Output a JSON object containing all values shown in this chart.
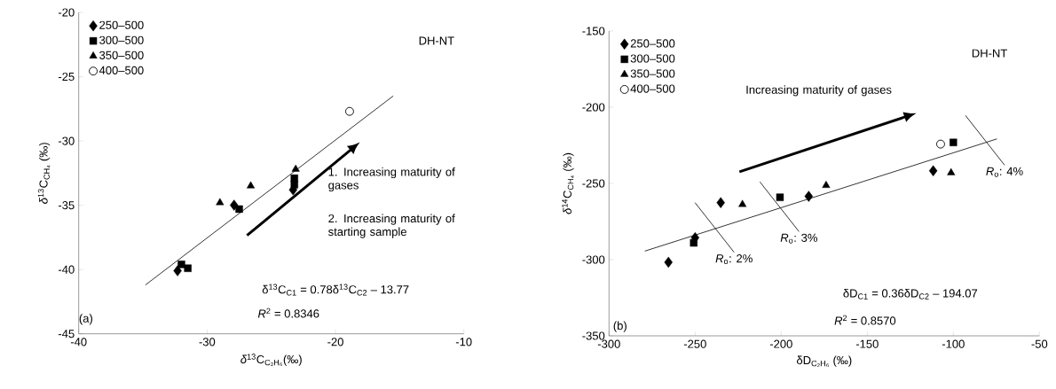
{
  "chart_data": [
    {
      "type": "scatter",
      "xlabel": "*δ*$^{13}$C$_{C₂H₆}$(‰)",
      "ylabel": "*δ*$^{13}$C$_{CH₄}$ (‰)",
      "xlim": [
        -40,
        -10
      ],
      "xticks": [
        -40,
        -30,
        -20,
        -10
      ],
      "ylim": [
        -45,
        -20
      ],
      "yticks": [
        -45,
        -40,
        -35,
        -30,
        -25,
        -20
      ],
      "legend": "top left",
      "grid": false,
      "series": [
        {
          "type": "line",
          "marker": "none",
          "color": "#000000",
          "x": [
            -34.8,
            -15.5
          ],
          "values": [
            -41.2,
            -26.5
          ]
        },
        {
          "name": "250–500",
          "marker": "diamond",
          "color": "#000000",
          "x": [
            -32.3,
            -27.9,
            -23.3
          ],
          "values": [
            -40.1,
            -35.0,
            -33.8
          ]
        },
        {
          "name": "300–500",
          "marker": "square",
          "color": "#000000",
          "x": [
            -32.0,
            -31.5,
            -27.5,
            -23.2,
            -23.2
          ],
          "values": [
            -39.6,
            -39.9,
            -35.3,
            -32.9,
            -33.4
          ]
        },
        {
          "name": "350–500",
          "marker": "triangle",
          "color": "#000000",
          "x": [
            -29.0,
            -26.6,
            -23.1
          ],
          "values": [
            -34.8,
            -33.5,
            -32.2
          ]
        },
        {
          "name": "400–500",
          "marker": "circle",
          "color": "#000000",
          "x": [
            -18.9
          ],
          "values": [
            -27.7
          ]
        }
      ],
      "annotations": [
        "DH-NT",
        "1. Increasing maturity of gases",
        "2. Increasing maturity of starting sample",
        "δ$^{13}$C$_{C1}$ = 0.78δ$^{13}$C$_{C2}$ – 13.77",
        "*R*$^{2}$ = 0.8346",
        "(a)"
      ]
    },
    {
      "type": "scatter",
      "xlabel": "δD$_{C₂H₆}$ (‰)",
      "ylabel": "*δ*$^{14}$C$_{CH₄}$ (‰)",
      "xlim": [
        -300,
        -50
      ],
      "xticks": [
        -300,
        -250,
        -200,
        -150,
        -100,
        -50
      ],
      "ylim": [
        -350,
        -150
      ],
      "yticks": [
        -350,
        -300,
        -250,
        -200,
        -150
      ],
      "legend": "top left",
      "grid": false,
      "series": [
        {
          "type": "line",
          "marker": "none",
          "color": "#000000",
          "x": [
            -279.2,
            -74.7
          ],
          "values": [
            -294.4,
            -220.8
          ]
        },
        {
          "name": "250–500",
          "marker": "diamond",
          "color": "#000000",
          "x": [
            -265.5,
            -250,
            -235.1,
            -184.0,
            -111.7
          ],
          "values": [
            -301.7,
            -285.6,
            -262.6,
            -258.5,
            -241.7
          ]
        },
        {
          "name": "300–500",
          "marker": "square",
          "color": "#000000",
          "x": [
            -250.8,
            -200.7,
            -100
          ],
          "values": [
            -289,
            -259.1,
            -223.1
          ]
        },
        {
          "name": "350–500",
          "marker": "triangle",
          "color": "#000000",
          "x": [
            -222.5,
            -173.9,
            -101.3
          ],
          "values": [
            -263.8,
            -251.3,
            -243
          ]
        },
        {
          "name": "400–500",
          "marker": "circle",
          "color": "#000000",
          "x": [
            -107.4
          ],
          "values": [
            -224.2
          ]
        }
      ],
      "annotations": [
        "DH-NT",
        "Increasing maturity of gases",
        {
          "text": "*R*$_{o}$: 2%",
          "x": -238.7,
          "y": -278.9
        },
        {
          "text": "*R*$_{o}$: 3%",
          "x": -201,
          "y": -265.3
        },
        {
          "text": "*R*$_{o}$: 4%",
          "x": -81.6,
          "y": -221.7
        },
        "δD$_{C1}$ = 0.36δD$_{C2}$ – 194.07",
        "*R*$^{2}$ = 0.8570",
        "(b)"
      ]
    }
  ]
}
